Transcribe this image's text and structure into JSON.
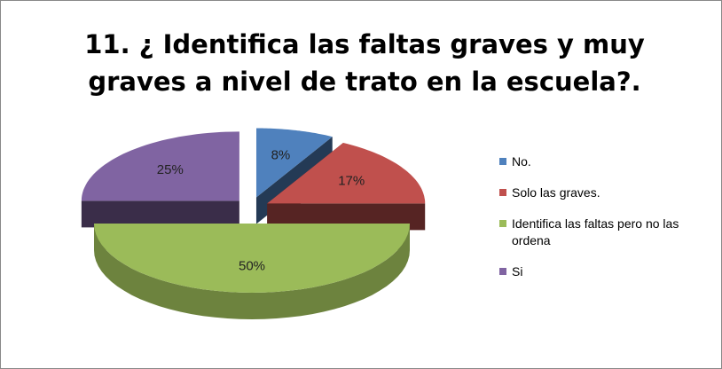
{
  "chart_data": {
    "type": "pie3d",
    "title": "11. ¿ Identifica las faltas graves y muy graves a nivel de trato en la escuela?.",
    "categories": [
      "No.",
      "Solo las graves.",
      "Identifica las faltas pero no las ordena",
      "Si"
    ],
    "values": [
      8,
      17,
      50,
      25
    ],
    "value_labels": [
      "8%",
      "17%",
      "50%",
      "25%"
    ],
    "colors": [
      "#4f81bd",
      "#c0504d",
      "#9bbb59",
      "#8064a2"
    ],
    "legend": "right"
  }
}
